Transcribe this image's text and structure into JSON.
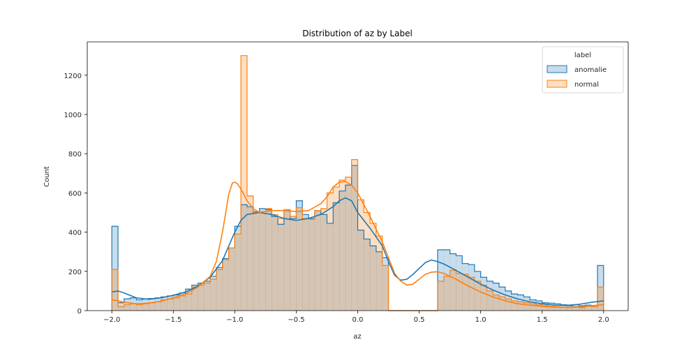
{
  "chart_data": {
    "type": "bar",
    "title": "Distribution of az by Label",
    "xlabel": "az",
    "ylabel": "Count",
    "xlim": [
      -2.2,
      2.2
    ],
    "ylim": [
      0,
      1370
    ],
    "x_ticks": [
      -2.0,
      -1.5,
      -1.0,
      -0.5,
      0.0,
      0.5,
      1.0,
      1.5,
      2.0
    ],
    "x_tick_labels": [
      "−2.0",
      "−1.5",
      "−1.0",
      "−0.5",
      "0.0",
      "0.5",
      "1.0",
      "1.5",
      "2.0"
    ],
    "y_ticks": [
      0,
      200,
      400,
      600,
      800,
      1000,
      1200
    ],
    "y_tick_labels": [
      "0",
      "200",
      "400",
      "600",
      "800",
      "1000",
      "1200"
    ],
    "grid": false,
    "legend": {
      "title": "label",
      "placement": "top-right"
    },
    "bin_start": -2.0,
    "bin_width": 0.05,
    "series": [
      {
        "name": "anomalie",
        "color": "#1f77b4",
        "values": [
          430,
          40,
          60,
          65,
          55,
          60,
          62,
          65,
          70,
          75,
          80,
          90,
          110,
          130,
          140,
          150,
          175,
          220,
          265,
          320,
          430,
          540,
          530,
          505,
          520,
          515,
          480,
          440,
          510,
          470,
          560,
          490,
          470,
          510,
          490,
          445,
          550,
          610,
          640,
          740,
          410,
          365,
          330,
          300,
          270,
          0,
          0,
          0,
          0,
          0,
          0,
          0,
          0,
          310,
          310,
          290,
          280,
          240,
          235,
          200,
          170,
          150,
          140,
          120,
          100,
          85,
          80,
          70,
          55,
          50,
          40,
          38,
          35,
          30,
          25,
          30,
          25,
          28,
          20,
          230
        ],
        "kde": [
          [
            -2.0,
            95
          ],
          [
            -1.95,
            100
          ],
          [
            -1.9,
            90
          ],
          [
            -1.8,
            65
          ],
          [
            -1.7,
            58
          ],
          [
            -1.6,
            65
          ],
          [
            -1.5,
            78
          ],
          [
            -1.4,
            95
          ],
          [
            -1.3,
            125
          ],
          [
            -1.2,
            170
          ],
          [
            -1.1,
            255
          ],
          [
            -1.0,
            400
          ],
          [
            -0.95,
            460
          ],
          [
            -0.9,
            490
          ],
          [
            -0.8,
            500
          ],
          [
            -0.7,
            490
          ],
          [
            -0.6,
            470
          ],
          [
            -0.5,
            460
          ],
          [
            -0.4,
            470
          ],
          [
            -0.3,
            490
          ],
          [
            -0.2,
            530
          ],
          [
            -0.15,
            560
          ],
          [
            -0.1,
            575
          ],
          [
            -0.05,
            560
          ],
          [
            0.0,
            500
          ],
          [
            0.1,
            420
          ],
          [
            0.2,
            330
          ],
          [
            0.25,
            250
          ],
          [
            0.3,
            180
          ],
          [
            0.35,
            155
          ],
          [
            0.4,
            160
          ],
          [
            0.45,
            185
          ],
          [
            0.5,
            215
          ],
          [
            0.55,
            245
          ],
          [
            0.6,
            258
          ],
          [
            0.65,
            250
          ],
          [
            0.7,
            238
          ],
          [
            0.8,
            205
          ],
          [
            0.9,
            170
          ],
          [
            1.0,
            135
          ],
          [
            1.1,
            105
          ],
          [
            1.2,
            80
          ],
          [
            1.3,
            60
          ],
          [
            1.4,
            45
          ],
          [
            1.5,
            35
          ],
          [
            1.6,
            28
          ],
          [
            1.7,
            27
          ],
          [
            1.8,
            32
          ],
          [
            1.9,
            42
          ],
          [
            2.0,
            50
          ]
        ]
      },
      {
        "name": "normal",
        "color": "#ff7f0e",
        "values": [
          210,
          20,
          30,
          35,
          30,
          35,
          40,
          45,
          55,
          60,
          65,
          75,
          85,
          120,
          130,
          140,
          160,
          210,
          260,
          320,
          390,
          1300,
          585,
          500,
          505,
          520,
          490,
          470,
          515,
          480,
          525,
          470,
          465,
          510,
          520,
          600,
          630,
          665,
          680,
          770,
          565,
          500,
          445,
          380,
          230,
          0,
          0,
          0,
          0,
          0,
          0,
          0,
          0,
          150,
          175,
          205,
          190,
          185,
          170,
          150,
          130,
          100,
          80,
          70,
          60,
          50,
          45,
          40,
          35,
          30,
          25,
          22,
          20,
          18,
          15,
          20,
          15,
          22,
          20,
          120
        ],
        "kde": [
          [
            -2.0,
            55
          ],
          [
            -1.95,
            50
          ],
          [
            -1.9,
            42
          ],
          [
            -1.8,
            35
          ],
          [
            -1.7,
            38
          ],
          [
            -1.6,
            48
          ],
          [
            -1.5,
            65
          ],
          [
            -1.4,
            85
          ],
          [
            -1.3,
            120
          ],
          [
            -1.2,
            175
          ],
          [
            -1.15,
            250
          ],
          [
            -1.1,
            400
          ],
          [
            -1.05,
            590
          ],
          [
            -1.02,
            650
          ],
          [
            -1.0,
            655
          ],
          [
            -0.98,
            648
          ],
          [
            -0.95,
            620
          ],
          [
            -0.9,
            560
          ],
          [
            -0.85,
            520
          ],
          [
            -0.8,
            500
          ],
          [
            -0.7,
            510
          ],
          [
            -0.6,
            510
          ],
          [
            -0.5,
            505
          ],
          [
            -0.4,
            510
          ],
          [
            -0.3,
            545
          ],
          [
            -0.25,
            580
          ],
          [
            -0.2,
            630
          ],
          [
            -0.15,
            655
          ],
          [
            -0.1,
            658
          ],
          [
            -0.05,
            640
          ],
          [
            0.0,
            600
          ],
          [
            0.1,
            480
          ],
          [
            0.2,
            350
          ],
          [
            0.25,
            270
          ],
          [
            0.3,
            190
          ],
          [
            0.35,
            150
          ],
          [
            0.4,
            130
          ],
          [
            0.45,
            135
          ],
          [
            0.5,
            160
          ],
          [
            0.55,
            185
          ],
          [
            0.6,
            196
          ],
          [
            0.65,
            198
          ],
          [
            0.7,
            190
          ],
          [
            0.8,
            160
          ],
          [
            0.9,
            125
          ],
          [
            1.0,
            95
          ],
          [
            1.1,
            70
          ],
          [
            1.2,
            50
          ],
          [
            1.3,
            35
          ],
          [
            1.4,
            28
          ],
          [
            1.5,
            22
          ],
          [
            1.6,
            18
          ],
          [
            1.7,
            16
          ],
          [
            1.8,
            18
          ],
          [
            1.9,
            25
          ],
          [
            2.0,
            30
          ]
        ]
      }
    ]
  }
}
